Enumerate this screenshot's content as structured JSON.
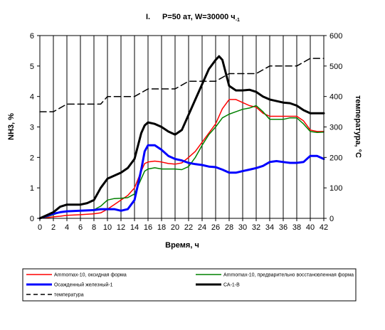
{
  "chart_data": {
    "type": "line",
    "title_prefix": "I.",
    "title": "P=50 ат,  W=30000 ч",
    "title_superscript": "-1",
    "xlabel": "Время, ч",
    "ylabel_left": "NH3, %",
    "ylabel_right": "температура, °С",
    "xlim": [
      0,
      42
    ],
    "ylim_left": [
      0,
      6
    ],
    "ylim_right": [
      0,
      600
    ],
    "x_ticks": [
      "0",
      "2",
      "4",
      "6",
      "8",
      "10",
      "12",
      "14",
      "16",
      "18",
      "20",
      "22",
      "24",
      "26",
      "28",
      "30",
      "32",
      "34",
      "36",
      "38",
      "40",
      "42"
    ],
    "y_ticks_left": [
      "0",
      "1",
      "2",
      "3",
      "4",
      "5",
      "6"
    ],
    "y_ticks_right": [
      "0",
      "100",
      "200",
      "300",
      "400",
      "500",
      "600"
    ],
    "grid": "vertical",
    "legend_position": "bottom",
    "series": [
      {
        "name": "Ammomax-10, оксидная форма",
        "axis": "left",
        "color": "#ff0000",
        "style": "solid",
        "points": [
          [
            0,
            0
          ],
          [
            1,
            0.02
          ],
          [
            2,
            0.05
          ],
          [
            3,
            0.07
          ],
          [
            4,
            0.1
          ],
          [
            6,
            0.12
          ],
          [
            8,
            0.15
          ],
          [
            9,
            0.18
          ],
          [
            10,
            0.3
          ],
          [
            11,
            0.45
          ],
          [
            12,
            0.6
          ],
          [
            13,
            0.75
          ],
          [
            14,
            1.0
          ],
          [
            15,
            1.55
          ],
          [
            15.5,
            1.8
          ],
          [
            16,
            1.85
          ],
          [
            17,
            1.88
          ],
          [
            18,
            1.85
          ],
          [
            19,
            1.8
          ],
          [
            20,
            1.78
          ],
          [
            21,
            1.82
          ],
          [
            22,
            2.0
          ],
          [
            23,
            2.2
          ],
          [
            24,
            2.5
          ],
          [
            25,
            2.8
          ],
          [
            26,
            3.1
          ],
          [
            27,
            3.6
          ],
          [
            28,
            3.9
          ],
          [
            29,
            3.9
          ],
          [
            30,
            3.8
          ],
          [
            31,
            3.7
          ],
          [
            32,
            3.65
          ],
          [
            33,
            3.45
          ],
          [
            34,
            3.35
          ],
          [
            36,
            3.35
          ],
          [
            38,
            3.35
          ],
          [
            39,
            3.2
          ],
          [
            40,
            2.9
          ],
          [
            41,
            2.85
          ],
          [
            42,
            2.85
          ]
        ]
      },
      {
        "name": "Ammomax-10, предварительно восстановленная форма",
        "axis": "left",
        "color": "#008000",
        "style": "solid",
        "points": [
          [
            0,
            0
          ],
          [
            1,
            0.05
          ],
          [
            2,
            0.12
          ],
          [
            3,
            0.2
          ],
          [
            4,
            0.22
          ],
          [
            6,
            0.25
          ],
          [
            8,
            0.28
          ],
          [
            9,
            0.4
          ],
          [
            10,
            0.6
          ],
          [
            11,
            0.65
          ],
          [
            12,
            0.66
          ],
          [
            13,
            0.68
          ],
          [
            14,
            0.8
          ],
          [
            15,
            1.3
          ],
          [
            15.5,
            1.55
          ],
          [
            16,
            1.62
          ],
          [
            17,
            1.66
          ],
          [
            18,
            1.62
          ],
          [
            19,
            1.62
          ],
          [
            20,
            1.62
          ],
          [
            21,
            1.6
          ],
          [
            22,
            1.7
          ],
          [
            23,
            2.0
          ],
          [
            24,
            2.4
          ],
          [
            25,
            2.75
          ],
          [
            26,
            3.0
          ],
          [
            27,
            3.3
          ],
          [
            28,
            3.42
          ],
          [
            29,
            3.5
          ],
          [
            30,
            3.58
          ],
          [
            31,
            3.62
          ],
          [
            32,
            3.7
          ],
          [
            33,
            3.5
          ],
          [
            34,
            3.25
          ],
          [
            35,
            3.25
          ],
          [
            36,
            3.25
          ],
          [
            37,
            3.3
          ],
          [
            38,
            3.3
          ],
          [
            39,
            3.1
          ],
          [
            40,
            2.85
          ],
          [
            41,
            2.82
          ],
          [
            42,
            2.83
          ]
        ]
      },
      {
        "name": "Осажденный железный-1",
        "axis": "left",
        "color": "#0000ff",
        "style": "solid",
        "points": [
          [
            0,
            0
          ],
          [
            1,
            0.08
          ],
          [
            2,
            0.15
          ],
          [
            3,
            0.2
          ],
          [
            4,
            0.23
          ],
          [
            6,
            0.25
          ],
          [
            8,
            0.27
          ],
          [
            9,
            0.3
          ],
          [
            10,
            0.3
          ],
          [
            11,
            0.3
          ],
          [
            12,
            0.25
          ],
          [
            13,
            0.3
          ],
          [
            14,
            0.6
          ],
          [
            15,
            1.6
          ],
          [
            15.5,
            2.2
          ],
          [
            16,
            2.4
          ],
          [
            17,
            2.4
          ],
          [
            18,
            2.25
          ],
          [
            19,
            2.05
          ],
          [
            20,
            1.95
          ],
          [
            21,
            1.9
          ],
          [
            22,
            1.82
          ],
          [
            23,
            1.78
          ],
          [
            24,
            1.75
          ],
          [
            25,
            1.7
          ],
          [
            26,
            1.68
          ],
          [
            27,
            1.6
          ],
          [
            28,
            1.5
          ],
          [
            29,
            1.5
          ],
          [
            30,
            1.55
          ],
          [
            31,
            1.6
          ],
          [
            32,
            1.65
          ],
          [
            33,
            1.72
          ],
          [
            34,
            1.85
          ],
          [
            35,
            1.88
          ],
          [
            36,
            1.85
          ],
          [
            37,
            1.82
          ],
          [
            38,
            1.82
          ],
          [
            39,
            1.85
          ],
          [
            40,
            2.05
          ],
          [
            41,
            2.05
          ],
          [
            42,
            1.95
          ]
        ]
      },
      {
        "name": "СА-1-В",
        "axis": "left",
        "color": "#000000",
        "style": "solid",
        "points": [
          [
            0,
            0
          ],
          [
            1,
            0.1
          ],
          [
            2,
            0.2
          ],
          [
            3,
            0.38
          ],
          [
            4,
            0.45
          ],
          [
            6,
            0.45
          ],
          [
            7,
            0.5
          ],
          [
            8,
            0.6
          ],
          [
            9,
            1.0
          ],
          [
            10,
            1.3
          ],
          [
            11,
            1.4
          ],
          [
            12,
            1.5
          ],
          [
            13,
            1.65
          ],
          [
            14,
            1.95
          ],
          [
            15,
            2.8
          ],
          [
            15.5,
            3.05
          ],
          [
            16,
            3.15
          ],
          [
            17,
            3.1
          ],
          [
            18,
            3.0
          ],
          [
            19,
            2.85
          ],
          [
            20,
            2.75
          ],
          [
            21,
            2.9
          ],
          [
            22,
            3.4
          ],
          [
            23,
            3.9
          ],
          [
            24,
            4.4
          ],
          [
            25,
            4.9
          ],
          [
            26,
            5.2
          ],
          [
            26.5,
            5.32
          ],
          [
            27,
            5.2
          ],
          [
            28,
            4.35
          ],
          [
            29,
            4.2
          ],
          [
            30,
            4.2
          ],
          [
            31,
            4.22
          ],
          [
            32,
            4.15
          ],
          [
            33,
            4.0
          ],
          [
            34,
            3.9
          ],
          [
            35,
            3.85
          ],
          [
            36,
            3.8
          ],
          [
            37,
            3.78
          ],
          [
            38,
            3.7
          ],
          [
            39,
            3.55
          ],
          [
            40,
            3.45
          ],
          [
            41,
            3.45
          ],
          [
            42,
            3.45
          ]
        ]
      },
      {
        "name": "температура",
        "axis": "right",
        "color": "#000000",
        "style": "dashed",
        "points": [
          [
            0,
            350
          ],
          [
            2,
            350
          ],
          [
            4,
            375
          ],
          [
            9,
            375
          ],
          [
            10,
            400
          ],
          [
            12,
            400
          ],
          [
            14,
            400
          ],
          [
            16,
            425
          ],
          [
            20,
            425
          ],
          [
            22,
            450
          ],
          [
            26,
            450
          ],
          [
            28,
            475
          ],
          [
            32,
            475
          ],
          [
            34,
            500
          ],
          [
            38,
            500
          ],
          [
            40,
            525
          ],
          [
            42,
            525
          ]
        ]
      }
    ]
  }
}
